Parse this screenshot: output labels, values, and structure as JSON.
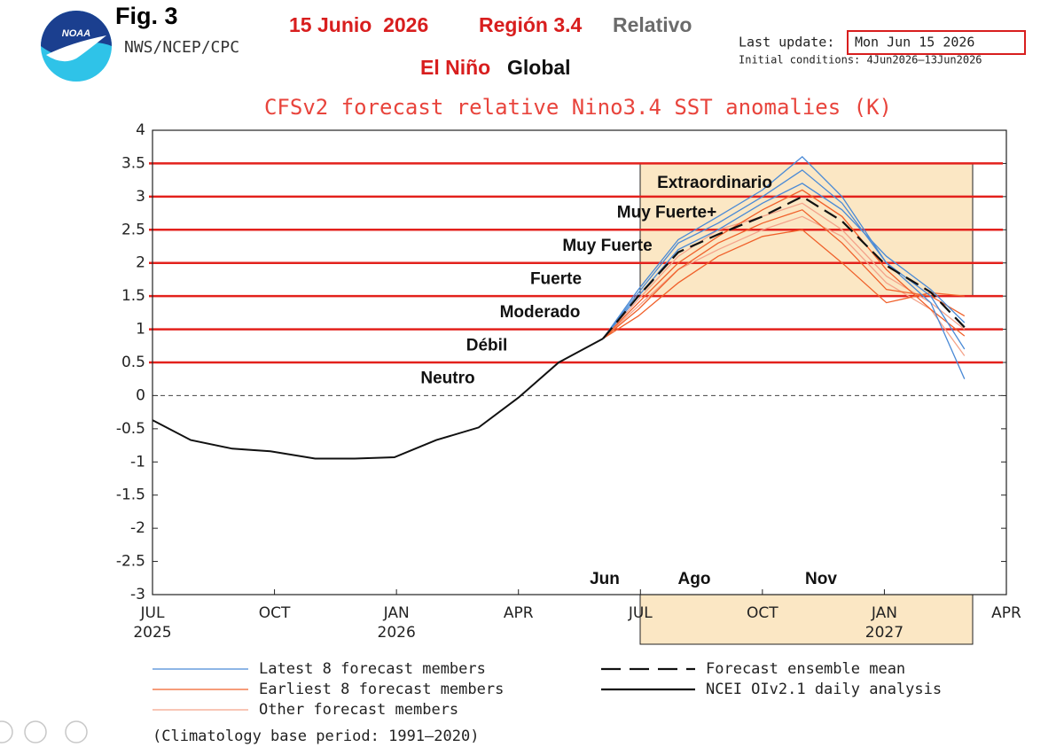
{
  "chart_data": {
    "type": "line",
    "figure_label": "Fig. 3",
    "agency": "NWS/NCEP/CPC",
    "logo_text": "NOAA",
    "date_heading": "15 Junio  2026",
    "region_heading": "Región 3.4",
    "mode_heading": "Relativo",
    "event_heading": "El Niño",
    "scope_heading": "Global",
    "last_update_label": "Last update:",
    "last_update": "Mon Jun 15 2026",
    "initial_conditions": "Initial conditions: 4Jun2026–13Jun2026",
    "title": "CFSv2 forecast relative Nino3.4 SST anomalies (K)",
    "footnote": "(Climatology base period: 1991–2020)",
    "xlim": [
      0,
      21
    ],
    "xticks": [
      {
        "value": 0,
        "label": "JUL"
      },
      {
        "value": 3,
        "label": "OCT"
      },
      {
        "value": 6,
        "label": "JAN"
      },
      {
        "value": 9,
        "label": "APR"
      },
      {
        "value": 12,
        "label": "JUL"
      },
      {
        "value": 15,
        "label": "OCT"
      },
      {
        "value": 18,
        "label": "JAN"
      },
      {
        "value": 21,
        "label": "APR"
      }
    ],
    "xtick_years": [
      {
        "value": 0,
        "label": "2025"
      },
      {
        "value": 6,
        "label": "2026"
      },
      {
        "value": 18,
        "label": "2027"
      }
    ],
    "ylim": [
      -3,
      4
    ],
    "yticks": [
      4,
      3.5,
      3,
      2.5,
      2,
      1.5,
      1,
      0.5,
      0,
      -0.5,
      -1,
      -1.5,
      -2,
      -2.5,
      -3
    ],
    "threshold_color": "#e3211c",
    "thresholds": [
      0.5,
      1,
      1.5,
      2,
      2.5,
      3,
      3.5
    ],
    "intensity_labels": [
      "Neutro",
      "Débil",
      "Moderado",
      "Fuerte",
      "Muy Fuerte",
      "Muy Fuerte+",
      "Extraordinario"
    ],
    "month_annotations": [
      "Jun",
      "Ago",
      "Nov"
    ],
    "series": [
      {
        "name": "NCEI OIv2.1 daily analysis",
        "color": "#111111",
        "dash": false,
        "x": [
          0,
          0.94,
          1.96,
          2.9,
          4.0,
          4.97,
          5.95,
          6.98,
          8.02,
          9.0,
          9.99,
          11.08
        ],
        "values": [
          -0.37,
          -0.67,
          -0.8,
          -0.84,
          -0.95,
          -0.95,
          -0.93,
          -0.67,
          -0.48,
          -0.03,
          0.5,
          0.86
        ]
      },
      {
        "name": "Forecast ensemble mean",
        "color": "#111111",
        "dash": true,
        "x": [
          11.08,
          11.95,
          12.93,
          13.91,
          15.0,
          15.98,
          16.96,
          18.05,
          19.14,
          19.97
        ],
        "values": [
          0.86,
          1.5,
          2.16,
          2.43,
          2.7,
          3.0,
          2.63,
          1.96,
          1.56,
          1.03
        ]
      },
      {
        "name": "Latest 8 forecast members",
        "color": "#4a8ad6",
        "x": [
          11.08,
          11.95,
          12.93,
          13.91,
          15.0,
          15.98,
          16.96,
          18.05,
          19.14,
          19.97
        ],
        "members": [
          [
            0.86,
            1.6,
            2.35,
            2.7,
            3.1,
            3.6,
            3.0,
            2.0,
            1.4,
            0.25
          ],
          [
            0.86,
            1.55,
            2.3,
            2.6,
            3.0,
            3.4,
            2.9,
            2.0,
            1.5,
            0.7
          ],
          [
            0.86,
            1.5,
            2.2,
            2.5,
            2.9,
            3.2,
            2.8,
            2.1,
            1.6,
            1.1
          ]
        ]
      },
      {
        "name": "Earliest 8 forecast members",
        "color": "#f0602a",
        "x": [
          11.08,
          11.95,
          12.93,
          13.91,
          15.0,
          15.98,
          16.96,
          18.05,
          19.14,
          19.97
        ],
        "members": [
          [
            0.86,
            1.3,
            1.9,
            2.3,
            2.6,
            2.8,
            2.3,
            1.6,
            1.5,
            1.2
          ],
          [
            0.86,
            1.4,
            2.0,
            2.4,
            2.8,
            3.1,
            2.7,
            1.9,
            1.3,
            0.9
          ],
          [
            0.86,
            1.2,
            1.7,
            2.1,
            2.4,
            2.5,
            2.0,
            1.4,
            1.55,
            1.5
          ]
        ]
      },
      {
        "name": "Other forecast members",
        "color": "#f4a38a",
        "x": [
          11.08,
          11.95,
          12.93,
          13.91,
          15.0,
          15.98,
          16.96,
          18.05,
          19.14,
          19.97
        ],
        "members": [
          [
            0.86,
            1.45,
            2.1,
            2.5,
            2.7,
            2.9,
            2.5,
            1.8,
            1.4,
            1.0
          ],
          [
            0.86,
            1.35,
            1.9,
            2.2,
            2.5,
            2.7,
            2.4,
            1.7,
            1.3,
            0.6
          ]
        ]
      }
    ]
  }
}
